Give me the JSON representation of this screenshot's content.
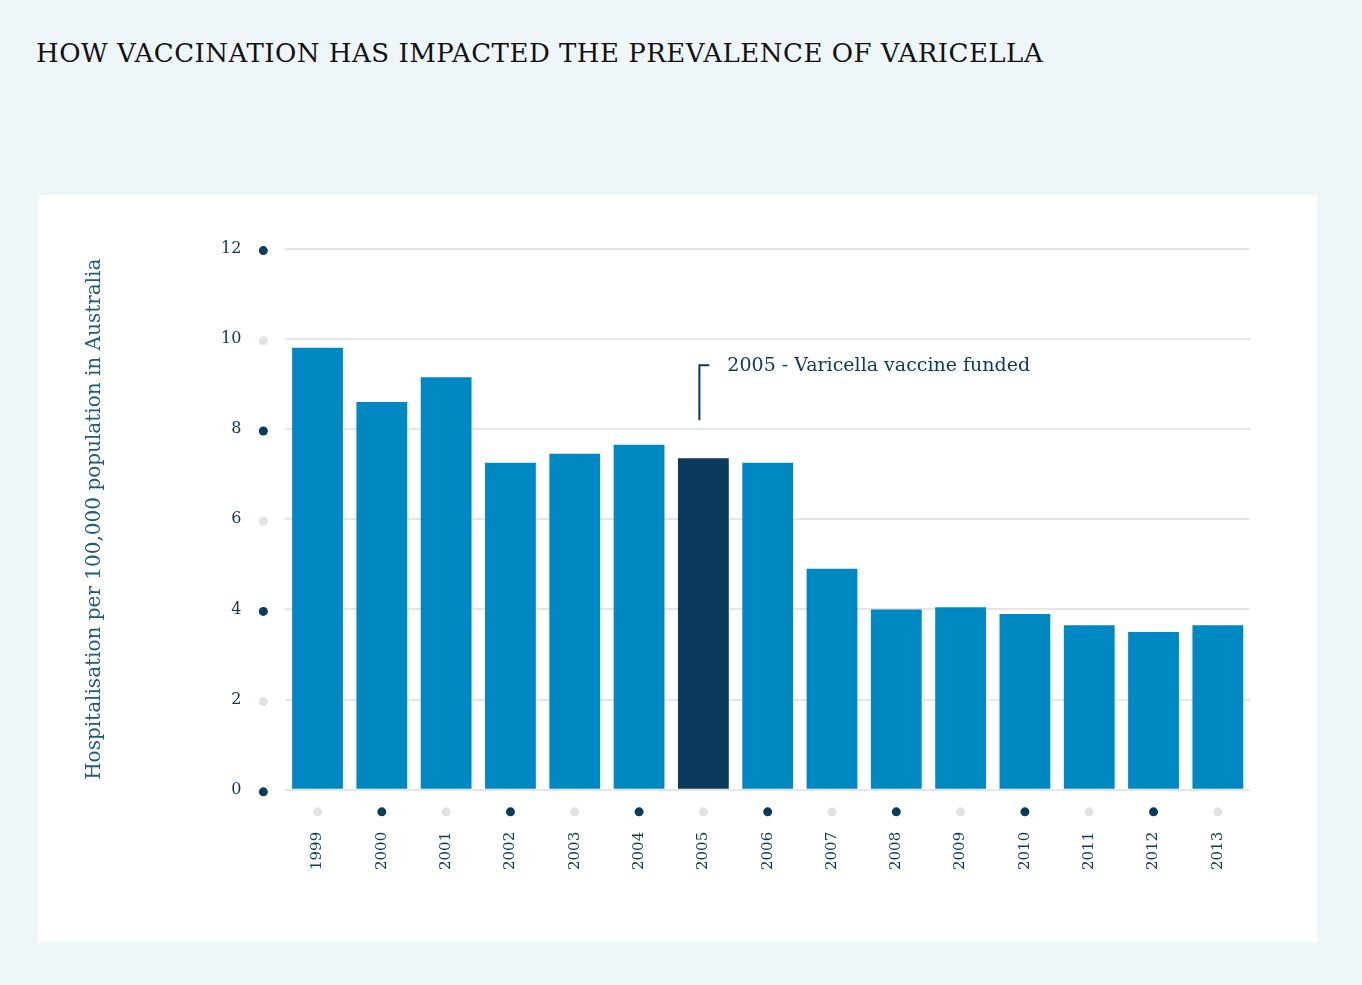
{
  "chart_data": {
    "type": "bar",
    "title": "HOW VACCINATION HAS IMPACTED THE PREVALENCE OF VARICELLA",
    "y_label": "Hospitalisation per 100,000 population in Australia",
    "categories": [
      "1999",
      "2000",
      "2001",
      "2002",
      "2003",
      "2004",
      "2005",
      "2006",
      "2007",
      "2008",
      "2009",
      "2010",
      "2011",
      "2012",
      "2013"
    ],
    "values": [
      9.8,
      8.6,
      9.15,
      7.25,
      7.45,
      7.65,
      7.35,
      7.25,
      4.9,
      4.0,
      4.05,
      3.9,
      3.65,
      3.5,
      3.65
    ],
    "colors": [
      "#0088c2",
      "#0088c2",
      "#0088c2",
      "#0088c2",
      "#0088c2",
      "#0088c2",
      "#0a3a5c",
      "#0088c2",
      "#0088c2",
      "#0088c2",
      "#0088c2",
      "#0088c2",
      "#0088c2",
      "#0088c2",
      "#0088c2"
    ],
    "ylim": [
      0,
      12
    ],
    "yticks": [
      0,
      2,
      4,
      6,
      8,
      10,
      12
    ],
    "grid": true,
    "annotations": [
      {
        "text": "2005 - Varicella vaccine funded",
        "category": "2005"
      }
    ]
  }
}
